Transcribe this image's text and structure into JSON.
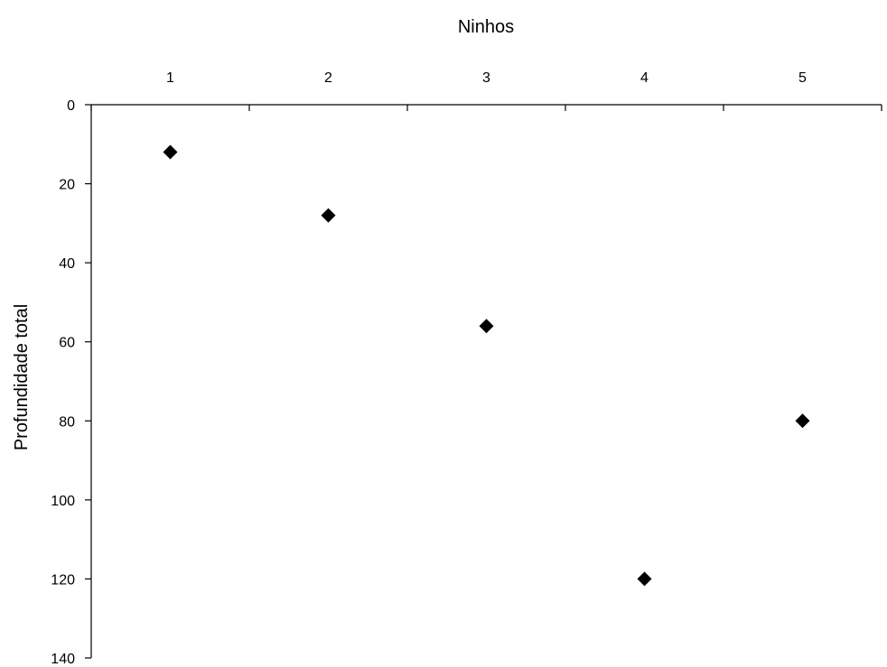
{
  "chart_data": {
    "type": "scatter",
    "title": "",
    "xlabel": "Ninhos",
    "ylabel": "Profundidade total",
    "x_axis_position": "top",
    "y_inverted": true,
    "xlim": [
      0.5,
      5.5
    ],
    "ylim": [
      0,
      140
    ],
    "xticks": [
      1,
      2,
      3,
      4,
      5
    ],
    "yticks": [
      0,
      20,
      40,
      60,
      80,
      100,
      120,
      140
    ],
    "grid": false,
    "legend": "none",
    "marker": "diamond",
    "marker_color": "#000000",
    "series": [
      {
        "x": [
          1,
          2,
          3,
          4,
          5
        ],
        "y": [
          12,
          28,
          56,
          120,
          80
        ]
      }
    ]
  }
}
